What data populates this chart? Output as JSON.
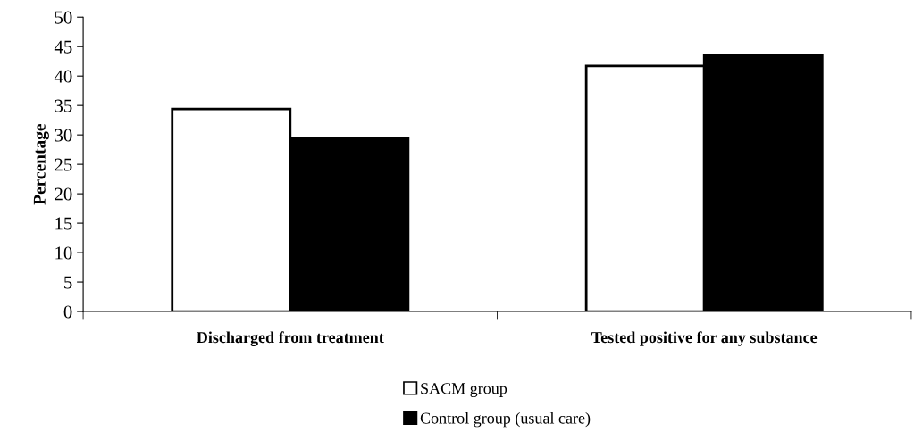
{
  "chart_data": {
    "type": "bar",
    "ylabel": "Percentage",
    "categories": [
      "Discharged from treatment",
      "Tested positive for any substance"
    ],
    "series": [
      {
        "name": "SACM group",
        "color": "#ffffff",
        "values": [
          34.4,
          41.7
        ]
      },
      {
        "name": "Control group (usual care)",
        "color": "#000000",
        "values": [
          29.5,
          43.5
        ]
      }
    ],
    "ylim": [
      0,
      50
    ],
    "yticks": [
      0,
      5,
      10,
      15,
      20,
      25,
      30,
      35,
      40,
      45,
      50
    ],
    "grid": false,
    "legend": "bottom"
  }
}
